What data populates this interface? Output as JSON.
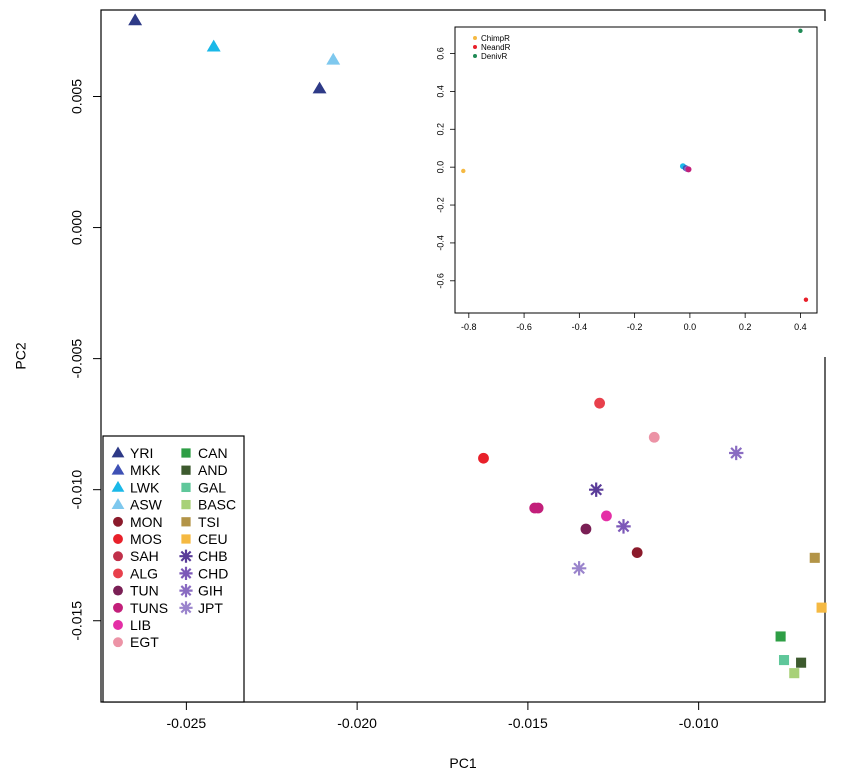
{
  "chart_data": [
    {
      "type": "scatter",
      "title": "",
      "xlabel": "PC1",
      "ylabel": "PC2",
      "xlim": [
        -0.0275,
        -0.0063
      ],
      "ylim": [
        -0.0181,
        0.0083
      ],
      "xticks": [
        -0.025,
        -0.02,
        -0.015,
        -0.01
      ],
      "xtick_labels": [
        "-0.025",
        "-0.020",
        "-0.015",
        "-0.010"
      ],
      "yticks": [
        -0.015,
        -0.01,
        -0.005,
        0.0,
        0.005
      ],
      "ytick_labels": [
        "-0.015",
        "-0.010",
        "-0.005",
        "0.000",
        "0.005"
      ],
      "grid": false,
      "legend_placement": "bottom-left",
      "series": [
        {
          "name": "YRI",
          "color": "#2e3a87",
          "marker": "triangle",
          "points": [
            {
              "x": -0.0265,
              "y": 0.0079
            },
            {
              "x": -0.0211,
              "y": 0.0053
            }
          ]
        },
        {
          "name": "MKK",
          "color": "#3f51b5",
          "marker": "triangle",
          "points": []
        },
        {
          "name": "LWK",
          "color": "#1ab8e8",
          "marker": "triangle",
          "points": [
            {
              "x": -0.0242,
              "y": 0.0069
            }
          ]
        },
        {
          "name": "ASW",
          "color": "#7ec8ee",
          "marker": "triangle",
          "points": [
            {
              "x": -0.0207,
              "y": 0.0064
            }
          ]
        },
        {
          "name": "MON",
          "color": "#8b1a2b",
          "marker": "circle",
          "points": [
            {
              "x": -0.0118,
              "y": -0.0124
            }
          ]
        },
        {
          "name": "MOS",
          "color": "#e8202a",
          "marker": "circle",
          "points": [
            {
              "x": -0.0163,
              "y": -0.0088
            }
          ]
        },
        {
          "name": "SAH",
          "color": "#c0304a",
          "marker": "circle",
          "points": []
        },
        {
          "name": "ALG",
          "color": "#e8404c",
          "marker": "circle",
          "points": [
            {
              "x": -0.0129,
              "y": -0.0067
            }
          ]
        },
        {
          "name": "TUN",
          "color": "#7a1f55",
          "marker": "circle",
          "points": [
            {
              "x": -0.0133,
              "y": -0.0115
            }
          ]
        },
        {
          "name": "TUNS",
          "color": "#c21f7a",
          "marker": "circle",
          "points": [
            {
              "x": -0.0148,
              "y": -0.0107
            },
            {
              "x": -0.0147,
              "y": -0.0107
            }
          ]
        },
        {
          "name": "LIB",
          "color": "#e42fa6",
          "marker": "circle",
          "points": [
            {
              "x": -0.0127,
              "y": -0.011
            }
          ]
        },
        {
          "name": "EGT",
          "color": "#ec93a6",
          "marker": "circle",
          "points": [
            {
              "x": -0.0113,
              "y": -0.008
            }
          ]
        },
        {
          "name": "CAN",
          "color": "#2e9e45",
          "marker": "square",
          "points": [
            {
              "x": -0.0076,
              "y": -0.0156
            }
          ]
        },
        {
          "name": "AND",
          "color": "#3d5a2e",
          "marker": "square",
          "points": [
            {
              "x": -0.007,
              "y": -0.0166
            }
          ]
        },
        {
          "name": "GAL",
          "color": "#5fc79a",
          "marker": "square",
          "points": [
            {
              "x": -0.0075,
              "y": -0.0165
            }
          ]
        },
        {
          "name": "BASC",
          "color": "#a8d178",
          "marker": "square",
          "points": [
            {
              "x": -0.0072,
              "y": -0.017
            }
          ]
        },
        {
          "name": "TSI",
          "color": "#b39447",
          "marker": "square",
          "points": [
            {
              "x": -0.0066,
              "y": -0.0126
            }
          ]
        },
        {
          "name": "CEU",
          "color": "#f5b942",
          "marker": "square",
          "points": [
            {
              "x": -0.0064,
              "y": -0.0145
            }
          ]
        },
        {
          "name": "CHB",
          "color": "#5a3c99",
          "marker": "star",
          "points": [
            {
              "x": -0.013,
              "y": -0.01
            }
          ]
        },
        {
          "name": "CHD",
          "color": "#7c58b8",
          "marker": "star",
          "points": [
            {
              "x": -0.0122,
              "y": -0.0114
            }
          ]
        },
        {
          "name": "GIH",
          "color": "#8a6cc2",
          "marker": "star",
          "points": [
            {
              "x": -0.0089,
              "y": -0.0086
            }
          ]
        },
        {
          "name": "JPT",
          "color": "#9a84cc",
          "marker": "star",
          "points": [
            {
              "x": -0.0135,
              "y": -0.013
            }
          ]
        }
      ]
    },
    {
      "type": "scatter",
      "title": "",
      "xlim": [
        -0.85,
        0.46
      ],
      "ylim": [
        -0.77,
        0.74
      ],
      "xticks": [
        -0.8,
        -0.6,
        -0.4,
        -0.2,
        0.0,
        0.2,
        0.4
      ],
      "xtick_labels": [
        "-0.8",
        "-0.6",
        "-0.4",
        "-0.2",
        "0.0",
        "0.2",
        "0.4"
      ],
      "yticks": [
        -0.6,
        -0.4,
        -0.2,
        0.0,
        0.2,
        0.4,
        0.6
      ],
      "ytick_labels": [
        "-0.6",
        "-0.4",
        "-0.2",
        "0.0",
        "0.2",
        "0.4",
        "0.6"
      ],
      "grid": false,
      "legend_placement": "top-left",
      "series": [
        {
          "name": "ChimpR",
          "color": "#f5b942",
          "marker": "dot",
          "points": [
            {
              "x": -0.82,
              "y": -0.02
            }
          ]
        },
        {
          "name": "NeandR",
          "color": "#e8202a",
          "marker": "dot",
          "points": [
            {
              "x": 0.42,
              "y": -0.7
            }
          ]
        },
        {
          "name": "DenivR",
          "color": "#1f8a55",
          "marker": "dot",
          "points": [
            {
              "x": 0.4,
              "y": 0.72
            }
          ]
        }
      ],
      "cluster_points": [
        {
          "x": -0.025,
          "y": 0.005,
          "color": "#1ab8e8"
        },
        {
          "x": -0.015,
          "y": -0.005,
          "color": "#3f51b5"
        },
        {
          "x": -0.01,
          "y": -0.01,
          "color": "#8a6cc2"
        },
        {
          "x": -0.005,
          "y": -0.012,
          "color": "#c21f7a"
        }
      ]
    }
  ]
}
